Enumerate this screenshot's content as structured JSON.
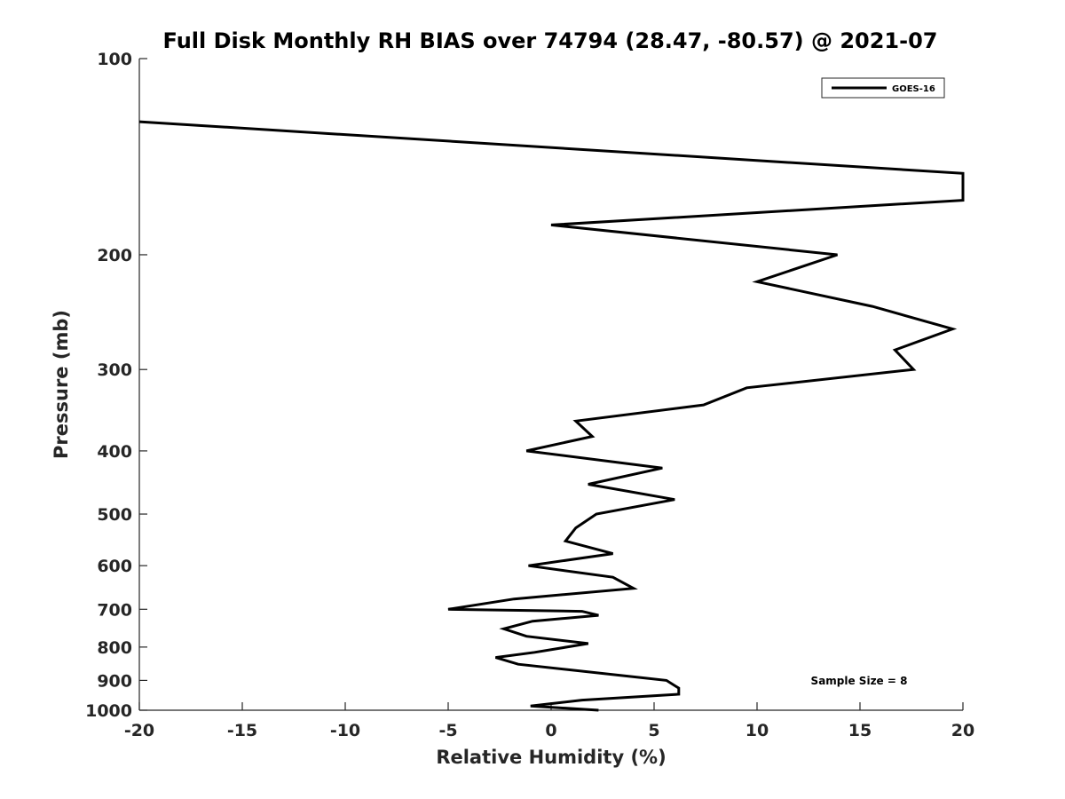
{
  "chart_data": {
    "type": "line",
    "title": "Full Disk Monthly RH BIAS over 74794 (28.47, -80.57) @ 2021-07",
    "xlabel": "Relative Humidity (%)",
    "ylabel": "Pressure (mb)",
    "xlim": [
      -20,
      20
    ],
    "ylim": [
      100,
      1000
    ],
    "y_scale": "log",
    "y_reversed": true,
    "x_ticks": [
      -20,
      -15,
      -10,
      -5,
      0,
      5,
      10,
      15,
      20
    ],
    "x_tick_labels": [
      "-20",
      "-15",
      "-10",
      "-5",
      "0",
      "5",
      "10",
      "15",
      "20"
    ],
    "y_ticks": [
      100,
      200,
      300,
      400,
      500,
      600,
      700,
      800,
      900,
      1000
    ],
    "y_tick_labels": [
      "100",
      "200",
      "300",
      "400",
      "500",
      "600",
      "700",
      "800",
      "900",
      "1000"
    ],
    "grid": false,
    "legend_position": "top-right",
    "annotation": "Sample Size = 8",
    "series": [
      {
        "name": "GOES-16",
        "color": "#000000",
        "points": [
          [
            2.3,
            1000
          ],
          [
            -1.0,
            985
          ],
          [
            1.5,
            965
          ],
          [
            6.2,
            945
          ],
          [
            6.2,
            925
          ],
          [
            5.6,
            900
          ],
          [
            -1.6,
            850
          ],
          [
            -2.7,
            830
          ],
          [
            -0.8,
            815
          ],
          [
            1.8,
            790
          ],
          [
            -1.2,
            770
          ],
          [
            -2.3,
            750
          ],
          [
            -0.9,
            730
          ],
          [
            2.3,
            715
          ],
          [
            1.5,
            705
          ],
          [
            -5.0,
            700
          ],
          [
            -1.8,
            675
          ],
          [
            4.0,
            650
          ],
          [
            3.0,
            625
          ],
          [
            -1.1,
            600
          ],
          [
            3.0,
            575
          ],
          [
            0.7,
            550
          ],
          [
            1.2,
            525
          ],
          [
            2.2,
            500
          ],
          [
            6.0,
            475
          ],
          [
            1.8,
            450
          ],
          [
            5.4,
            425
          ],
          [
            -1.2,
            400
          ],
          [
            2.0,
            380
          ],
          [
            1.2,
            360
          ],
          [
            7.4,
            340
          ],
          [
            9.5,
            320
          ],
          [
            17.6,
            300
          ],
          [
            16.7,
            280
          ],
          [
            19.5,
            260
          ],
          [
            15.6,
            240
          ],
          [
            10.0,
            220
          ],
          [
            13.9,
            200
          ],
          [
            0.0,
            180
          ],
          [
            20.0,
            165
          ],
          [
            20.0,
            150
          ],
          [
            -20.0,
            125
          ]
        ]
      }
    ]
  }
}
